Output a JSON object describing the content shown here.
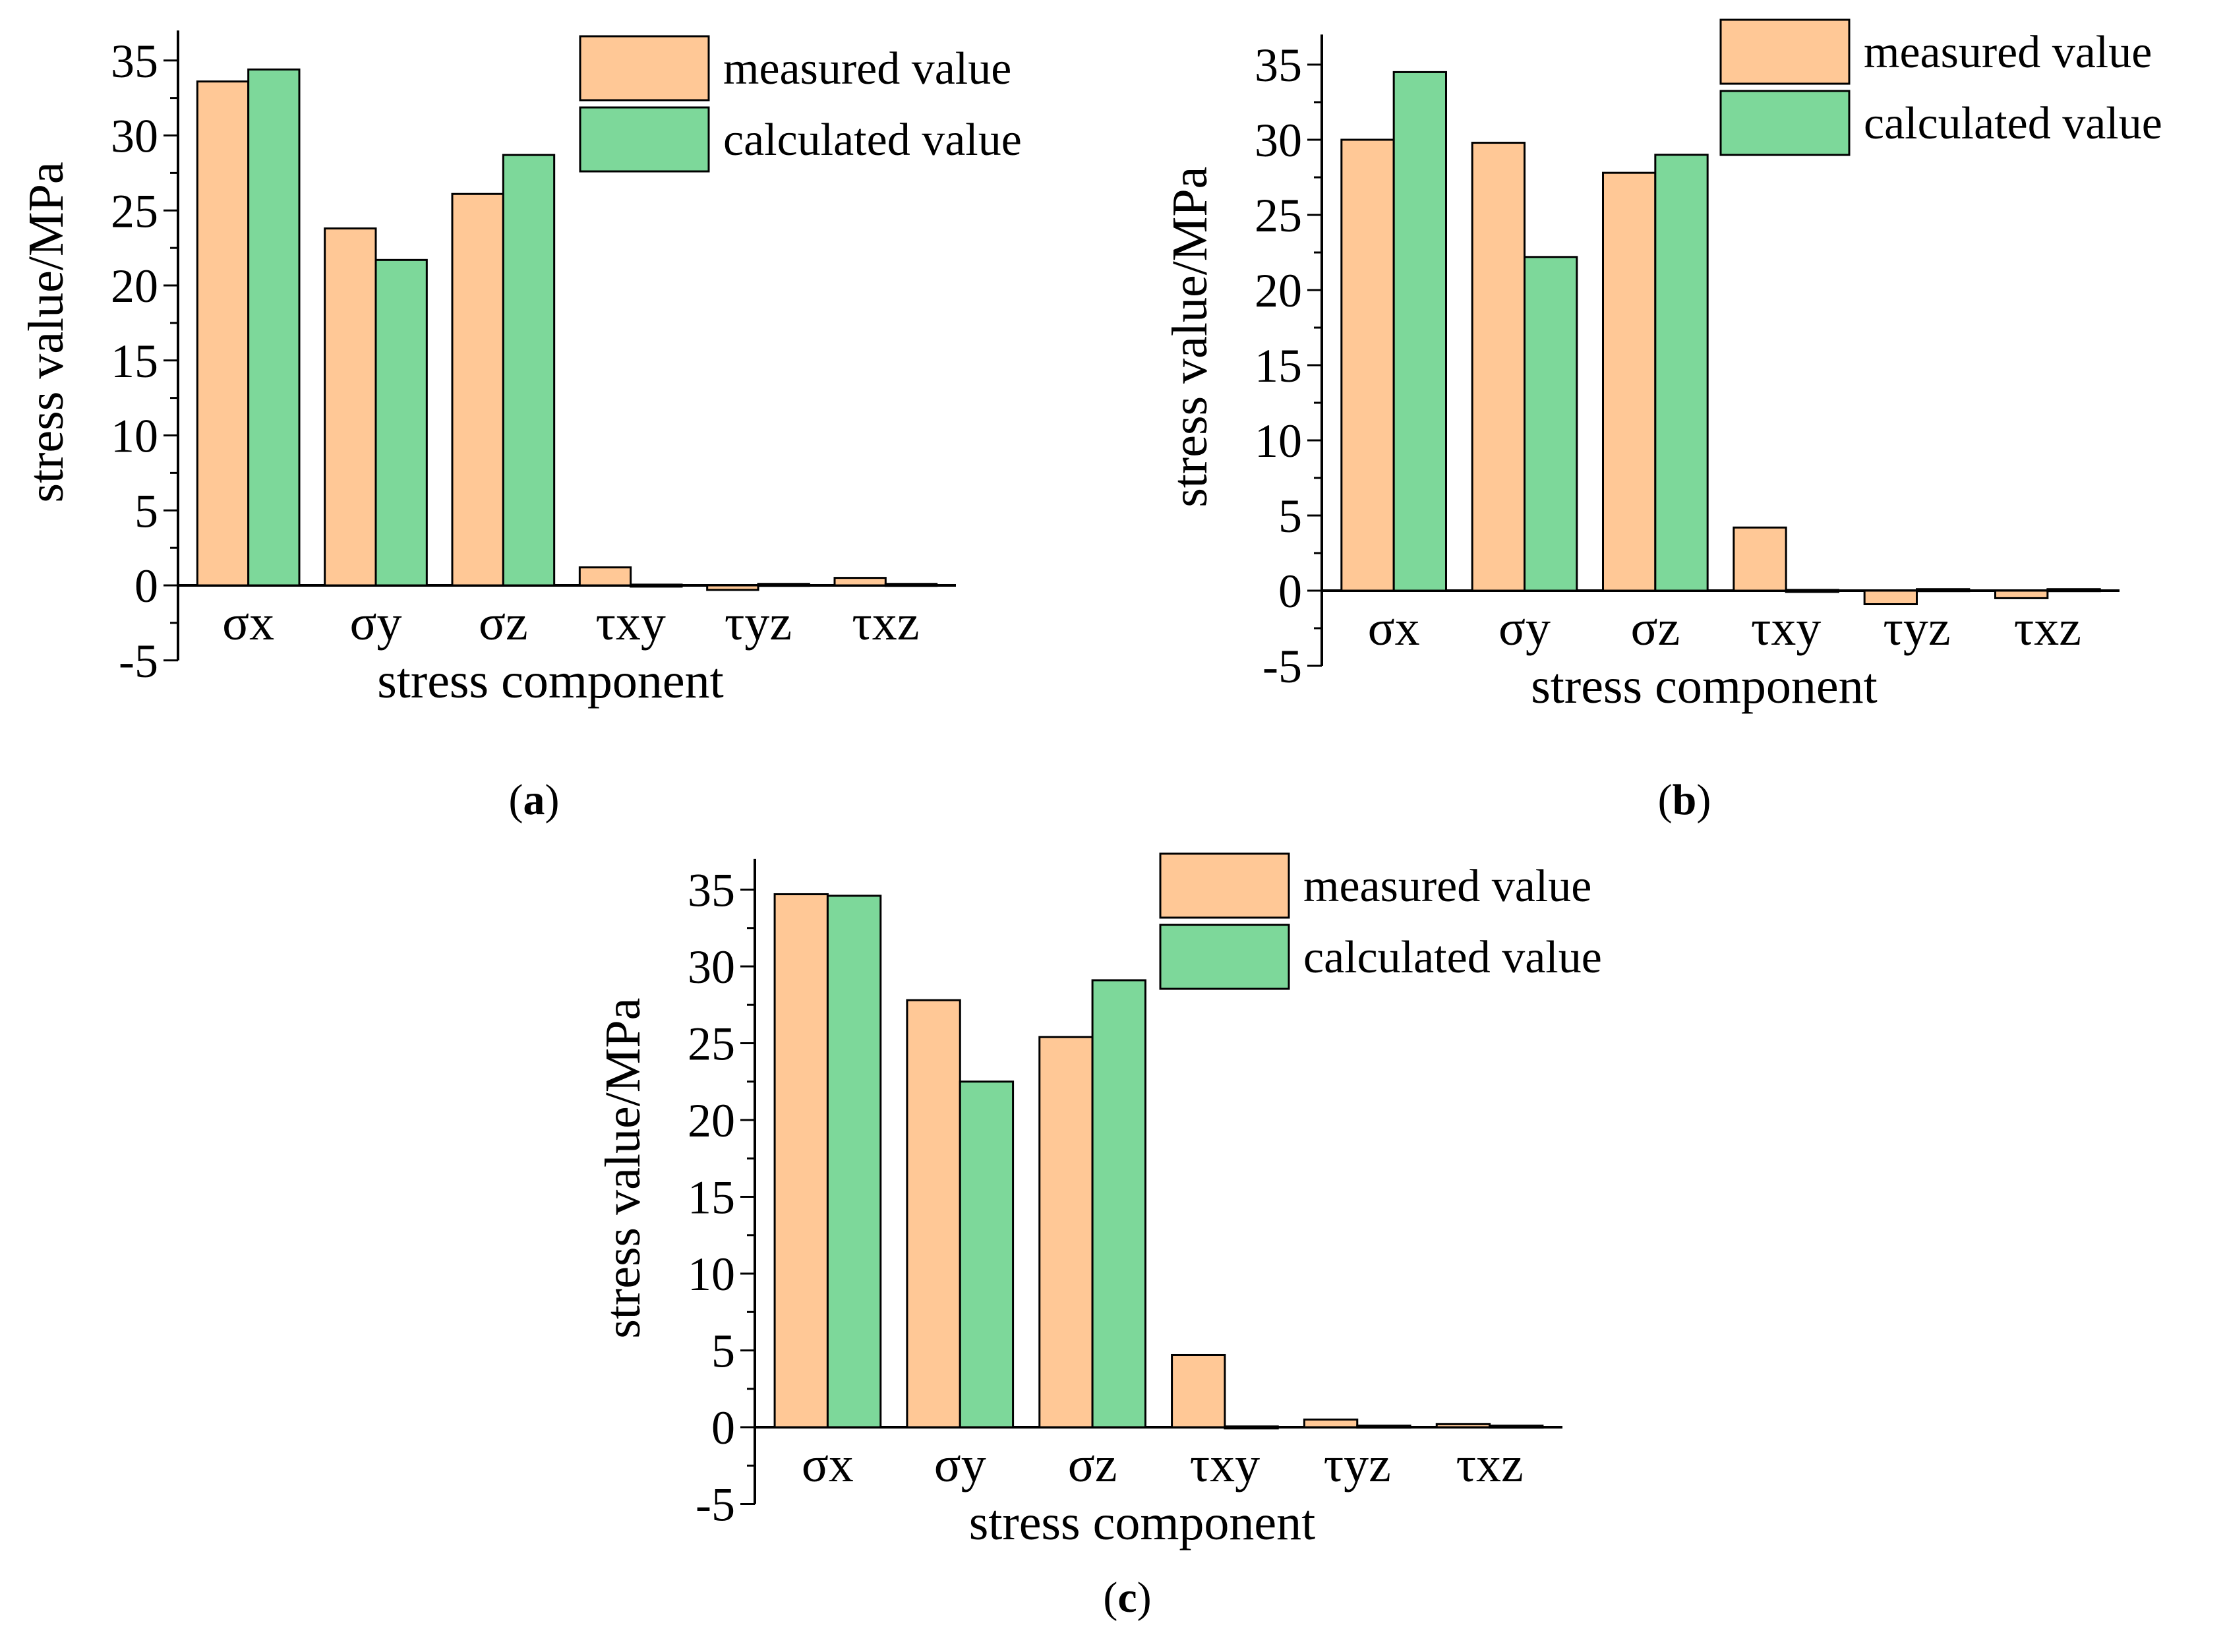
{
  "colors": {
    "measured": "#FFC896",
    "calculated": "#7DD89A",
    "axis": "#000000"
  },
  "chart_data": [
    {
      "type": "bar",
      "panel_label": "a",
      "categories": [
        "σx",
        "σy",
        "σz",
        "τxy",
        "τyz",
        "τxz"
      ],
      "series": [
        {
          "name": "measured value",
          "values": [
            33.6,
            23.8,
            26.1,
            1.2,
            -0.3,
            0.5
          ]
        },
        {
          "name": "calculated value",
          "values": [
            34.4,
            21.7,
            28.7,
            0.05,
            0.1,
            0.1
          ]
        }
      ],
      "xlabel": "stress component",
      "ylabel": "stress value/MPa",
      "ylim": [
        -5,
        37
      ],
      "yticks": [
        -5,
        0,
        5,
        10,
        15,
        20,
        25,
        30,
        35
      ],
      "legend": "top-right",
      "grid": false
    },
    {
      "type": "bar",
      "panel_label": "b",
      "categories": [
        "σx",
        "σy",
        "σz",
        "τxy",
        "τyz",
        "τxz"
      ],
      "series": [
        {
          "name": "measured value",
          "values": [
            30.0,
            29.8,
            27.8,
            4.2,
            -0.9,
            -0.5
          ]
        },
        {
          "name": "calculated value",
          "values": [
            34.5,
            22.2,
            29.0,
            0.05,
            0.1,
            0.1
          ]
        }
      ],
      "xlabel": "stress component",
      "ylabel": "stress value/MPa",
      "ylim": [
        -5,
        37
      ],
      "yticks": [
        -5,
        0,
        5,
        10,
        15,
        20,
        25,
        30,
        35
      ],
      "legend": "top-right",
      "grid": false
    },
    {
      "type": "bar",
      "panel_label": "c",
      "categories": [
        "σx",
        "σy",
        "σz",
        "τxy",
        "τyz",
        "τxz"
      ],
      "series": [
        {
          "name": "measured value",
          "values": [
            34.7,
            27.8,
            25.4,
            4.7,
            0.5,
            0.2
          ]
        },
        {
          "name": "calculated value",
          "values": [
            34.6,
            22.5,
            29.1,
            0.05,
            0.1,
            0.1
          ]
        }
      ],
      "xlabel": "stress component",
      "ylabel": "stress value/MPa",
      "ylim": [
        -5,
        37
      ],
      "yticks": [
        -5,
        0,
        5,
        10,
        15,
        20,
        25,
        30,
        35
      ],
      "legend": "top-right",
      "grid": false
    }
  ]
}
